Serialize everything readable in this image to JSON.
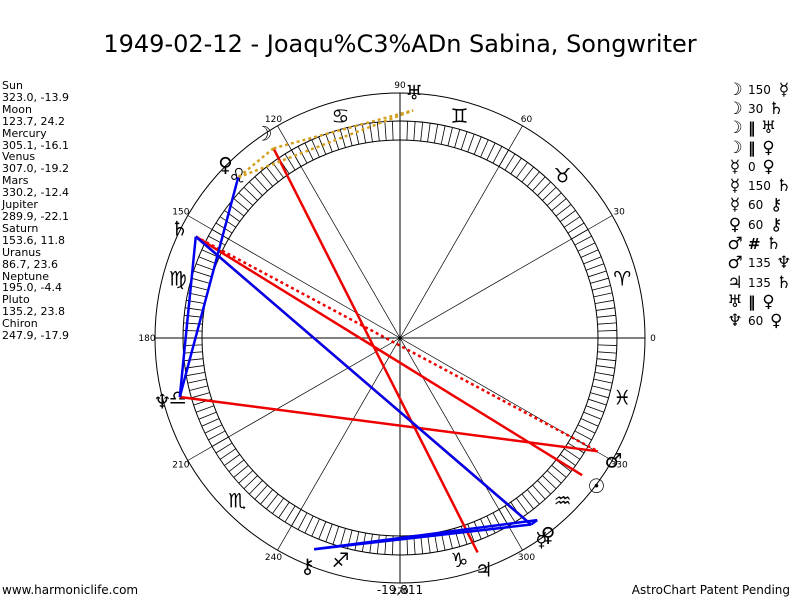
{
  "title": "1949-02-12 - Joaqu%C3%ADn Sabina, Songwriter",
  "planets": [
    {
      "name": "Sun",
      "coords": "323.0, -13.9"
    },
    {
      "name": "Moon",
      "coords": "123.7, 24.2"
    },
    {
      "name": "Mercury",
      "coords": "305.1, -16.1"
    },
    {
      "name": "Venus",
      "coords": "307.0, -19.2"
    },
    {
      "name": "Mars",
      "coords": "330.2, -12.4"
    },
    {
      "name": "Jupiter",
      "coords": "289.9, -22.1"
    },
    {
      "name": "Saturn",
      "coords": "153.6, 11.8"
    },
    {
      "name": "Uranus",
      "coords": "86.7, 23.6"
    },
    {
      "name": "Neptune",
      "coords": "195.0, -4.4"
    },
    {
      "name": "Pluto",
      "coords": "135.2, 23.8"
    },
    {
      "name": "Chiron",
      "coords": "247.9, -17.9"
    }
  ],
  "aspects": [
    {
      "p1": "☽",
      "aspect": "150",
      "p2": "☿"
    },
    {
      "p1": "☽",
      "aspect": "30",
      "p2": "♄"
    },
    {
      "p1": "☽",
      "aspect": "‖",
      "p2": "♅"
    },
    {
      "p1": "☽",
      "aspect": "‖",
      "p2": "♀"
    },
    {
      "p1": "☿",
      "aspect": "0",
      "p2": "♀"
    },
    {
      "p1": "☿",
      "aspect": "150",
      "p2": "♄"
    },
    {
      "p1": "☿",
      "aspect": "60",
      "p2": "⚷"
    },
    {
      "p1": "♀",
      "aspect": "60",
      "p2": "⚷"
    },
    {
      "p1": "♂",
      "aspect": "#",
      "p2": "♄"
    },
    {
      "p1": "♂",
      "aspect": "135",
      "p2": "♆"
    },
    {
      "p1": "♃",
      "aspect": "135",
      "p2": "♄"
    },
    {
      "p1": "♅",
      "aspect": "‖",
      "p2": "♀"
    },
    {
      "p1": "♆",
      "aspect": "60",
      "p2": "♀"
    }
  ],
  "wheel": {
    "degree_labels": [
      "0",
      "30",
      "60",
      "90",
      "120",
      "150",
      "180",
      "210",
      "240",
      "270",
      "300",
      "330"
    ],
    "zodiac": [
      {
        "name": "aries",
        "glyph": "♈",
        "lon": 15
      },
      {
        "name": "taurus",
        "glyph": "♉",
        "lon": 45
      },
      {
        "name": "gemini",
        "glyph": "♊",
        "lon": 75
      },
      {
        "name": "cancer",
        "glyph": "♋",
        "lon": 105
      },
      {
        "name": "leo",
        "glyph": "♌",
        "lon": 135
      },
      {
        "name": "virgo",
        "glyph": "♍",
        "lon": 165
      },
      {
        "name": "libra",
        "glyph": "♎",
        "lon": 195
      },
      {
        "name": "scorpio",
        "glyph": "♏",
        "lon": 225
      },
      {
        "name": "sagittarius",
        "glyph": "♐",
        "lon": 255
      },
      {
        "name": "capricorn",
        "glyph": "♑",
        "lon": 285
      },
      {
        "name": "aquarius",
        "glyph": "♒",
        "lon": 315
      },
      {
        "name": "pisces",
        "glyph": "♓",
        "lon": 345
      }
    ],
    "planet_glyphs": [
      {
        "name": "sun",
        "glyph": "☉",
        "lon": 323.0
      },
      {
        "name": "moon",
        "glyph": "☽",
        "lon": 123.7
      },
      {
        "name": "mercury",
        "glyph": "☿",
        "lon": 305.1
      },
      {
        "name": "venus",
        "glyph": "♀",
        "lon": 307.0
      },
      {
        "name": "mars",
        "glyph": "♂",
        "lon": 330.2
      },
      {
        "name": "jupiter",
        "glyph": "♃",
        "lon": 289.9
      },
      {
        "name": "saturn",
        "glyph": "♄",
        "lon": 153.6
      },
      {
        "name": "uranus",
        "glyph": "♅",
        "lon": 86.7
      },
      {
        "name": "neptune",
        "glyph": "♆",
        "lon": 195.0
      },
      {
        "name": "pluto",
        "glyph": "♀",
        "lon": 135.2
      },
      {
        "name": "chiron",
        "glyph": "⚷",
        "lon": 247.9
      }
    ],
    "aspect_lines": [
      {
        "from": "neptune",
        "to": "mars",
        "color": "#ee0000",
        "style": "solid"
      },
      {
        "from": "saturn",
        "to": "mars",
        "color": "#ee0000",
        "style": "dotted"
      },
      {
        "from": "moon",
        "to": "jupiter",
        "color": "#ee0000",
        "style": "solid"
      },
      {
        "from": "saturn",
        "to": "sun",
        "color": "#ee0000",
        "style": "solid"
      },
      {
        "from": "saturn",
        "to": "mercury",
        "color": "#ee0000",
        "style": "solid"
      },
      {
        "from": "moon",
        "to": "pluto",
        "color": "#d4a020",
        "style": "dotted"
      },
      {
        "from": "moon",
        "to": "uranus",
        "color": "#d4a020",
        "style": "dotted"
      },
      {
        "from": "pluto",
        "to": "uranus",
        "color": "#d4a020",
        "style": "dotted"
      },
      {
        "from": "pluto",
        "to": "neptune",
        "color": "#0000ee",
        "style": "solid"
      },
      {
        "from": "saturn",
        "to": "mercury",
        "color": "#0000ee",
        "style": "solid"
      },
      {
        "from": "neptune",
        "to": "saturn",
        "color": "#0000ee",
        "style": "solid"
      },
      {
        "from": "chiron",
        "to": "venus",
        "color": "#0000ee",
        "style": "solid"
      },
      {
        "from": "chiron",
        "to": "mercury",
        "color": "#0000ee",
        "style": "solid"
      },
      {
        "from": "mercury",
        "to": "venus",
        "color": "#0000ee",
        "style": "solid"
      }
    ],
    "center_values": {
      "bottom": "-19,811"
    }
  },
  "footer": {
    "left": "www.harmoniclife.com",
    "right": "AstroChart Patent Pending"
  }
}
